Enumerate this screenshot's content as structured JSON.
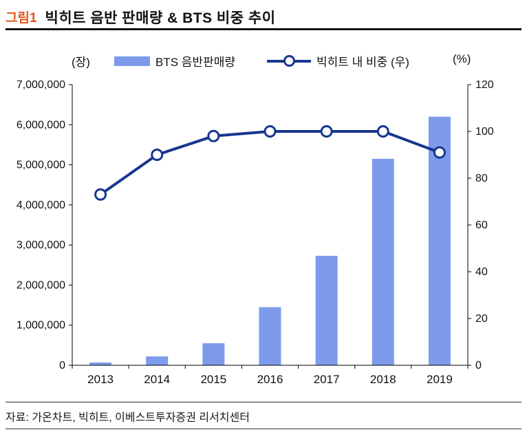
{
  "header": {
    "figure_label": "그림1",
    "title": "빅히트 음반 판매량 & BTS 비중 추이"
  },
  "legend": {
    "bar_label": "BTS 음반판매량",
    "line_label": "빅히트 내 비중 (우)"
  },
  "axes": {
    "left_unit_label": "(장)",
    "right_unit_label": "(%)"
  },
  "footer": {
    "source": "자료: 가온차트, 빅히트, 이베스트투자증권 리서치센터"
  },
  "colors": {
    "bar": "#7D9BEA",
    "line": "#17368F",
    "marker_fill": "#ffffff",
    "figure_label": "#E2551C",
    "axis": "#000000",
    "text": "#111111"
  },
  "chart_data": {
    "type": "bar",
    "title": "빅히트 음반 판매량 & BTS 비중 추이",
    "categories": [
      "2013",
      "2014",
      "2015",
      "2016",
      "2017",
      "2018",
      "2019"
    ],
    "series": [
      {
        "name": "BTS 음반판매량",
        "type": "bar",
        "axis": "left",
        "values": [
          70000,
          220000,
          550000,
          1450000,
          2730000,
          5150000,
          6200000
        ]
      },
      {
        "name": "빅히트 내 비중 (우)",
        "type": "line",
        "axis": "right",
        "values": [
          73,
          90,
          98,
          100,
          100,
          100,
          91
        ]
      }
    ],
    "left_axis": {
      "label": "(장)",
      "min": 0,
      "max": 7000000,
      "step": 1000000
    },
    "right_axis": {
      "label": "(%)",
      "min": 0,
      "max": 120,
      "step": 20
    },
    "grid": false,
    "legend_position": "top"
  }
}
